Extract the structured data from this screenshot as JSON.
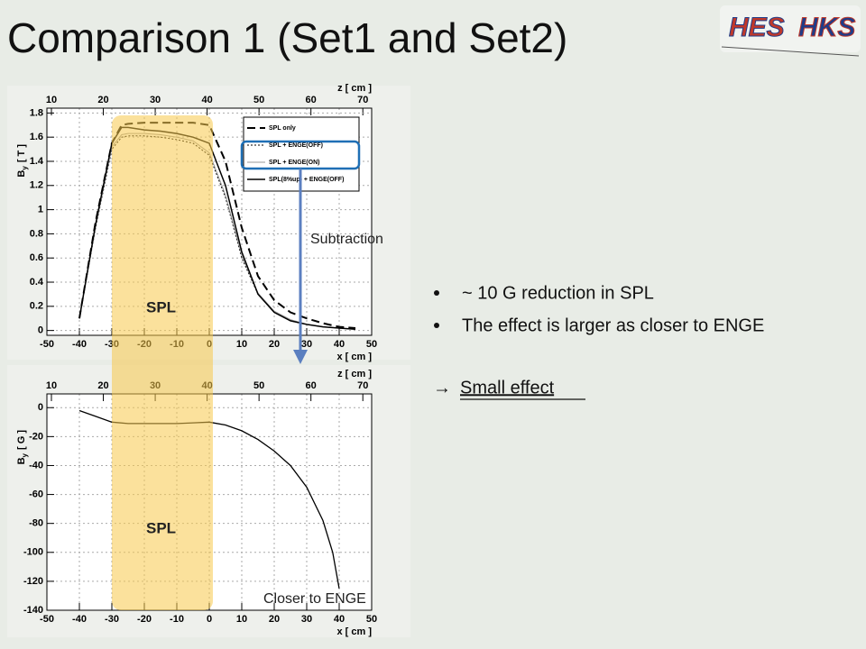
{
  "title": "Comparison 1 (Set1 and Set2)",
  "logo": {
    "left": "HES",
    "right": "HKS"
  },
  "annotations": {
    "subtraction": "Subtraction",
    "spl_top": "SPL",
    "spl_bottom": "SPL",
    "closer": "Closer to ENGE"
  },
  "bullets": [
    "~ 10 G reduction in SPL",
    "The effect is larger as closer to ENGE"
  ],
  "conclusion": {
    "arrow": "→",
    "text": "Small effect"
  },
  "chart_data": [
    {
      "type": "line",
      "x": [
        -40,
        -35,
        -30,
        -27,
        -25,
        -20,
        -15,
        -10,
        -5,
        0,
        5,
        10,
        15,
        20,
        25,
        30,
        35,
        40,
        45
      ],
      "series": [
        {
          "name": "SPL only",
          "color": "#000000",
          "dash": "9,5",
          "width": 2,
          "values": [
            0.1,
            0.9,
            1.55,
            1.7,
            1.71,
            1.72,
            1.72,
            1.72,
            1.72,
            1.7,
            1.4,
            0.85,
            0.45,
            0.25,
            0.15,
            0.1,
            0.06,
            0.03,
            0.02
          ]
        },
        {
          "name": "SPL + ENGE(OFF)",
          "color": "#000000",
          "dash": "2,2",
          "width": 1,
          "values": [
            0.1,
            0.85,
            1.5,
            1.6,
            1.61,
            1.61,
            1.6,
            1.58,
            1.55,
            1.45,
            1.1,
            0.6,
            0.3,
            0.15,
            0.08,
            0.05,
            0.03,
            0.02,
            0.01
          ]
        },
        {
          "name": "SPL + ENGE(ON)",
          "color": "#999999",
          "dash": "",
          "width": 1,
          "values": [
            0.1,
            0.86,
            1.52,
            1.62,
            1.63,
            1.63,
            1.62,
            1.6,
            1.57,
            1.47,
            1.12,
            0.62,
            0.31,
            0.16,
            0.09,
            0.05,
            0.03,
            0.02,
            0.01
          ]
        },
        {
          "name": "SPL(8%up) + ENGE(OFF)",
          "color": "#000000",
          "dash": "",
          "width": 1.5,
          "values": [
            0.1,
            0.88,
            1.55,
            1.68,
            1.68,
            1.66,
            1.65,
            1.63,
            1.6,
            1.55,
            1.2,
            0.65,
            0.3,
            0.15,
            0.08,
            0.05,
            0.03,
            0.02,
            0.01
          ]
        }
      ],
      "xlim": [
        -50,
        50
      ],
      "xticks": [
        -50,
        -40,
        -30,
        -20,
        -10,
        0,
        10,
        20,
        30,
        40,
        50
      ],
      "x2lim": [
        9.13,
        71.7
      ],
      "x2ticks": [
        10,
        20,
        30,
        40,
        50,
        60,
        70
      ],
      "ylim": [
        -0.04,
        1.84
      ],
      "yticks": [
        0,
        0.2,
        0.4,
        0.6,
        0.8,
        1,
        1.2,
        1.4,
        1.6,
        1.8
      ],
      "x_label": "x [ cm ]",
      "x2_label": "z [ cm ]",
      "y_label": [
        "B",
        "y",
        "[ T ]"
      ],
      "grid": true,
      "legend": "upper right"
    },
    {
      "type": "line",
      "x": [
        -40,
        -35,
        -30,
        -25,
        -20,
        -15,
        -10,
        -5,
        0,
        5,
        10,
        15,
        20,
        25,
        30,
        35,
        38,
        40
      ],
      "values": [
        -2,
        -6,
        -10,
        -11,
        -11,
        -11,
        -11,
        -10.5,
        -10,
        -12,
        -16,
        -22,
        -30,
        -40,
        -55,
        -78,
        -100,
        -125
      ],
      "color": "#000000",
      "xlim": [
        -50,
        50
      ],
      "xticks": [
        -50,
        -40,
        -30,
        -20,
        -10,
        0,
        10,
        20,
        30,
        40,
        50
      ],
      "x2lim": [
        9.13,
        71.7
      ],
      "x2ticks": [
        10,
        20,
        30,
        40,
        50,
        60,
        70
      ],
      "ylim": [
        -140,
        9.5
      ],
      "yticks": [
        -140,
        -120,
        -100,
        -80,
        -60,
        -40,
        -20,
        0
      ],
      "x_label": "x [ cm ]",
      "x2_label": "z [ cm ]",
      "y_label": [
        "B",
        "y",
        "[ G ]"
      ],
      "grid": true
    }
  ]
}
